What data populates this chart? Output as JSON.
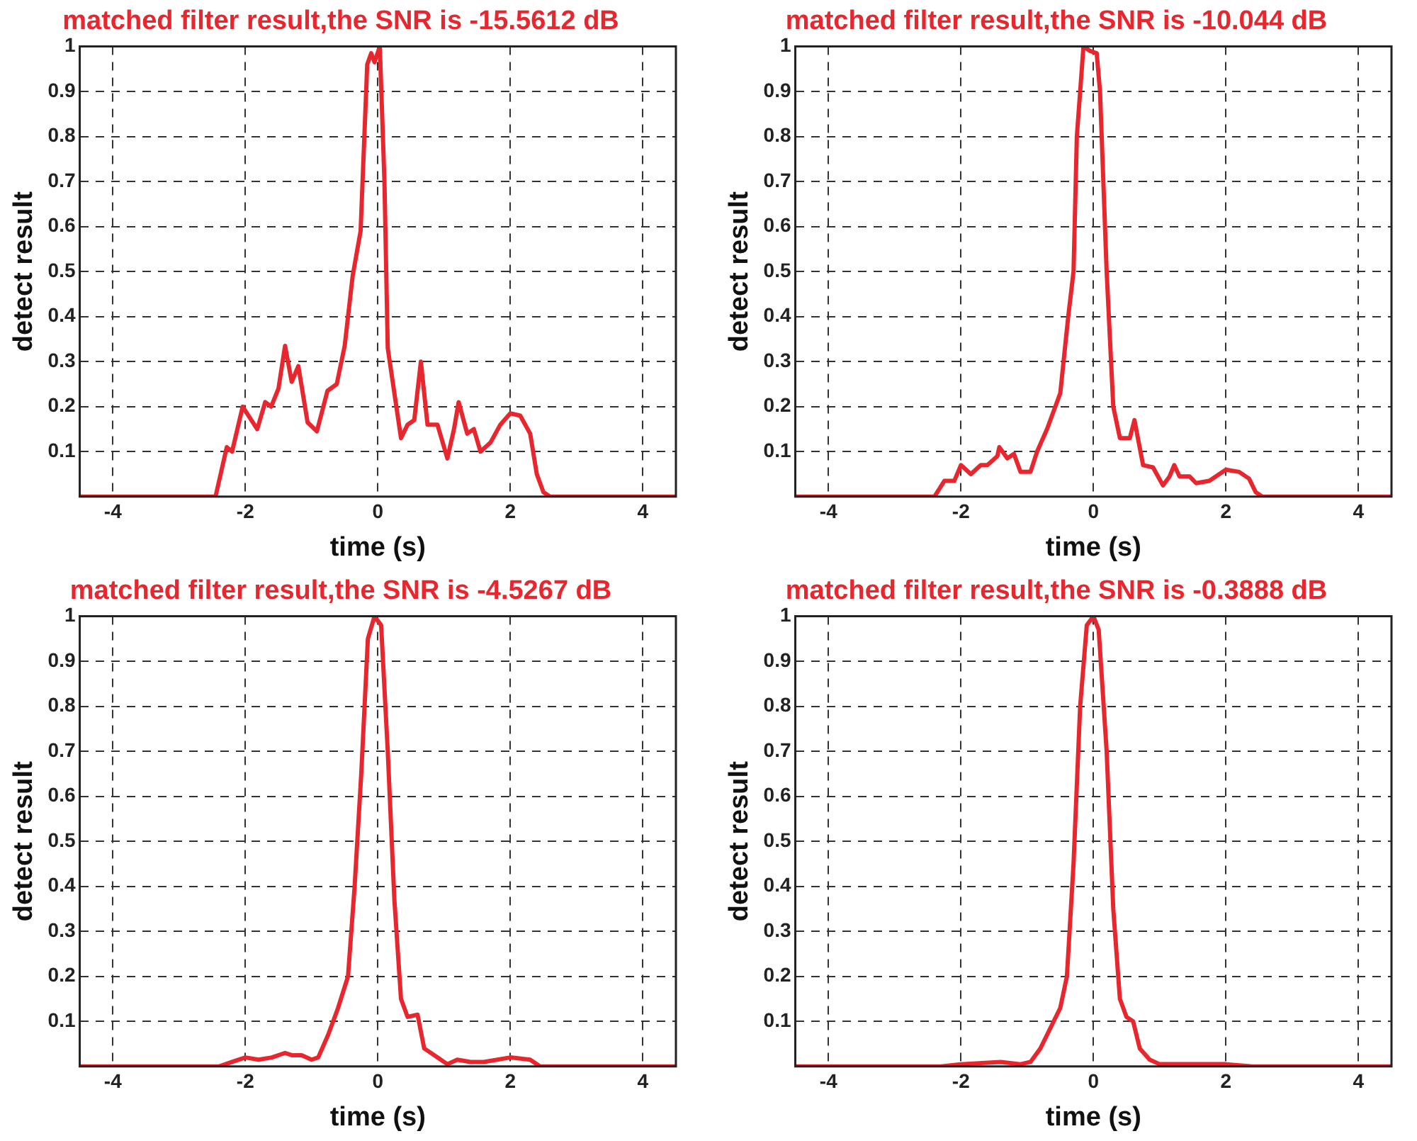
{
  "chart_data": [
    {
      "type": "line",
      "title": "matched filter result,the SNR is -15.5612 dB",
      "xlabel": "time (s)",
      "ylabel": "detect result",
      "color": "#e8262e",
      "marker": "none",
      "line_style": "solid",
      "grid": true,
      "xlim": [
        -4.5,
        4.5
      ],
      "xticks": [
        -4,
        -2,
        0,
        2,
        4
      ],
      "ylim": [
        0,
        1
      ],
      "yticks": [
        0.1,
        0.2,
        0.3,
        0.4,
        0.5,
        0.6,
        0.7,
        0.8,
        0.9,
        1
      ],
      "x": [
        -4.5,
        -2.45,
        -2.28,
        -2.2,
        -2.04,
        -1.82,
        -1.7,
        -1.61,
        -1.5,
        -1.4,
        -1.3,
        -1.2,
        -1.06,
        -0.92,
        -0.76,
        -0.62,
        -0.5,
        -0.38,
        -0.26,
        -0.16,
        -0.1,
        -0.05,
        0.03,
        0.1,
        0.15,
        0.25,
        0.35,
        0.45,
        0.55,
        0.65,
        0.75,
        0.9,
        1.05,
        1.15,
        1.22,
        1.35,
        1.45,
        1.55,
        1.7,
        1.85,
        2.0,
        2.15,
        2.3,
        2.4,
        2.5,
        2.6,
        4.5
      ],
      "values": [
        0,
        0,
        0.11,
        0.1,
        0.2,
        0.15,
        0.21,
        0.2,
        0.24,
        0.335,
        0.255,
        0.29,
        0.165,
        0.145,
        0.235,
        0.25,
        0.335,
        0.49,
        0.59,
        0.96,
        0.985,
        0.965,
        1,
        0.7,
        0.33,
        0.23,
        0.13,
        0.16,
        0.17,
        0.3,
        0.16,
        0.16,
        0.085,
        0.15,
        0.21,
        0.14,
        0.15,
        0.1,
        0.12,
        0.16,
        0.185,
        0.18,
        0.14,
        0.05,
        0.01,
        0,
        0
      ]
    },
    {
      "type": "line",
      "title": "matched filter result,the SNR is -10.044 dB",
      "xlabel": "time (s)",
      "ylabel": "detect result",
      "color": "#e8262e",
      "marker": "none",
      "line_style": "solid",
      "grid": true,
      "xlim": [
        -4.5,
        4.5
      ],
      "xticks": [
        -4,
        -2,
        0,
        2,
        4
      ],
      "ylim": [
        0,
        1
      ],
      "yticks": [
        0.1,
        0.2,
        0.3,
        0.4,
        0.5,
        0.6,
        0.7,
        0.8,
        0.9,
        1
      ],
      "x": [
        -4.5,
        -2.4,
        -2.25,
        -2.1,
        -2.0,
        -1.85,
        -1.7,
        -1.6,
        -1.45,
        -1.42,
        -1.3,
        -1.2,
        -1.1,
        -0.95,
        -0.85,
        -0.7,
        -0.5,
        -0.38,
        -0.3,
        -0.25,
        -0.15,
        -0.05,
        0.05,
        0.1,
        0.2,
        0.3,
        0.4,
        0.55,
        0.62,
        0.75,
        0.9,
        1.05,
        1.15,
        1.22,
        1.3,
        1.45,
        1.55,
        1.75,
        2.0,
        2.2,
        2.35,
        2.45,
        2.55,
        4.5
      ],
      "values": [
        0,
        0,
        0.035,
        0.035,
        0.07,
        0.05,
        0.07,
        0.07,
        0.09,
        0.11,
        0.085,
        0.095,
        0.055,
        0.055,
        0.1,
        0.15,
        0.23,
        0.4,
        0.5,
        0.8,
        1,
        0.99,
        0.985,
        0.9,
        0.5,
        0.2,
        0.13,
        0.13,
        0.17,
        0.07,
        0.065,
        0.025,
        0.045,
        0.07,
        0.045,
        0.045,
        0.03,
        0.035,
        0.06,
        0.055,
        0.04,
        0.01,
        0,
        0
      ]
    },
    {
      "type": "line",
      "title": "matched filter result,the SNR is -4.5267 dB",
      "xlabel": "time (s)",
      "ylabel": "detect result",
      "color": "#e8262e",
      "marker": "none",
      "line_style": "solid",
      "grid": true,
      "xlim": [
        -4.5,
        4.5
      ],
      "xticks": [
        -4,
        -2,
        0,
        2,
        4
      ],
      "ylim": [
        0,
        1
      ],
      "yticks": [
        0.1,
        0.2,
        0.3,
        0.4,
        0.5,
        0.6,
        0.7,
        0.8,
        0.9,
        1
      ],
      "x": [
        -4.5,
        -2.4,
        -2.2,
        -2.0,
        -1.8,
        -1.6,
        -1.4,
        -1.3,
        -1.15,
        -1.0,
        -0.9,
        -0.75,
        -0.6,
        -0.45,
        -0.35,
        -0.25,
        -0.15,
        -0.05,
        0.05,
        0.15,
        0.25,
        0.35,
        0.45,
        0.6,
        0.7,
        0.9,
        1.05,
        1.2,
        1.4,
        1.6,
        2.0,
        2.3,
        2.45,
        4.5
      ],
      "values": [
        0,
        0,
        0.01,
        0.02,
        0.015,
        0.02,
        0.03,
        0.025,
        0.025,
        0.015,
        0.02,
        0.07,
        0.13,
        0.2,
        0.4,
        0.65,
        0.95,
        1,
        0.98,
        0.7,
        0.37,
        0.15,
        0.11,
        0.115,
        0.04,
        0.02,
        0.005,
        0.015,
        0.01,
        0.01,
        0.02,
        0.015,
        0,
        0
      ]
    },
    {
      "type": "line",
      "title": "matched filter result,the SNR is -0.3888 dB",
      "xlabel": "time (s)",
      "ylabel": "detect result",
      "color": "#e8262e",
      "marker": "none",
      "line_style": "solid",
      "grid": true,
      "xlim": [
        -4.5,
        4.5
      ],
      "xticks": [
        -4,
        -2,
        0,
        2,
        4
      ],
      "ylim": [
        0,
        1
      ],
      "yticks": [
        0.1,
        0.2,
        0.3,
        0.4,
        0.5,
        0.6,
        0.7,
        0.8,
        0.9,
        1
      ],
      "x": [
        -4.5,
        -2.3,
        -2.0,
        -1.4,
        -1.1,
        -0.95,
        -0.8,
        -0.6,
        -0.5,
        -0.4,
        -0.3,
        -0.2,
        -0.1,
        0,
        0.08,
        0.2,
        0.3,
        0.4,
        0.5,
        0.6,
        0.7,
        0.85,
        1.0,
        1.2,
        2.0,
        2.4,
        4.5
      ],
      "values": [
        0,
        0,
        0.005,
        0.01,
        0.005,
        0.01,
        0.04,
        0.1,
        0.13,
        0.2,
        0.45,
        0.8,
        0.98,
        1,
        0.97,
        0.7,
        0.35,
        0.15,
        0.11,
        0.1,
        0.04,
        0.015,
        0.005,
        0.005,
        0.005,
        0,
        0
      ]
    }
  ]
}
